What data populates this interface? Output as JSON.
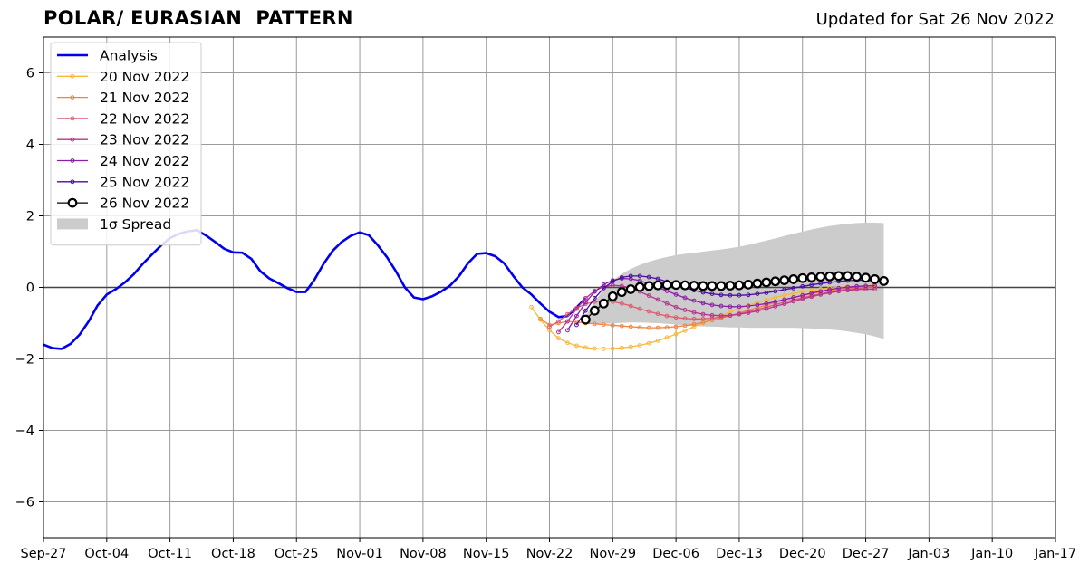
{
  "chart_data": {
    "type": "line",
    "title": "POLAR/ EURASIAN  PATTERN",
    "subtitle": "Updated for Sat 26 Nov 2022",
    "ylim": [
      -7,
      7
    ],
    "yticks": [
      -6,
      -4,
      -2,
      0,
      2,
      4,
      6
    ],
    "ytick_labels": [
      "−6",
      "−4",
      "−2",
      "0",
      "2",
      "4",
      "6"
    ],
    "xlim": [
      "2022-09-27",
      "2023-01-17"
    ],
    "xticks": [
      "2022-09-27",
      "2022-10-04",
      "2022-10-11",
      "2022-10-18",
      "2022-10-25",
      "2022-11-01",
      "2022-11-08",
      "2022-11-15",
      "2022-11-22",
      "2022-11-29",
      "2022-12-06",
      "2022-12-13",
      "2022-12-20",
      "2022-12-27",
      "2023-01-03",
      "2023-01-10",
      "2023-01-17"
    ],
    "xtick_labels": [
      "Sep-27",
      "Oct-04",
      "Oct-11",
      "Oct-18",
      "Oct-25",
      "Nov-01",
      "Nov-08",
      "Nov-15",
      "Nov-22",
      "Nov-29",
      "Dec-06",
      "Dec-13",
      "Dec-20",
      "Dec-27",
      "Jan-03",
      "Jan-10",
      "Jan-17"
    ],
    "grid": true,
    "legend_position": "top-left",
    "series": [
      {
        "name": "Analysis",
        "color": "#0000ee",
        "style": "analysis",
        "start": "2022-09-27",
        "values": [
          -1.6,
          -1.7,
          -1.72,
          -1.58,
          -1.32,
          -0.95,
          -0.5,
          -0.2,
          -0.05,
          0.14,
          0.37,
          0.66,
          0.92,
          1.17,
          1.38,
          1.5,
          1.57,
          1.6,
          1.45,
          1.27,
          1.08,
          0.98,
          0.97,
          0.8,
          0.45,
          0.25,
          0.12,
          -0.02,
          -0.13,
          -0.13,
          0.22,
          0.66,
          1.02,
          1.27,
          1.44,
          1.54,
          1.46,
          1.18,
          0.85,
          0.45,
          0.0,
          -0.28,
          -0.33,
          -0.25,
          -0.12,
          0.05,
          0.32,
          0.68,
          0.94,
          0.96,
          0.87,
          0.67,
          0.32,
          0.0,
          -0.2,
          -0.45,
          -0.68,
          -0.83,
          -0.8,
          -0.56,
          -0.3
        ]
      },
      {
        "name": "20 Nov 2022",
        "color": "#fbb735",
        "style": "forecast",
        "start": "2022-11-20",
        "values": [
          -0.55,
          -0.9,
          -1.2,
          -1.42,
          -1.55,
          -1.63,
          -1.68,
          -1.71,
          -1.72,
          -1.71,
          -1.69,
          -1.66,
          -1.62,
          -1.56,
          -1.49,
          -1.4,
          -1.31,
          -1.21,
          -1.1,
          -0.99,
          -0.88,
          -0.78,
          -0.68,
          -0.59,
          -0.5,
          -0.42,
          -0.35,
          -0.28,
          -0.22,
          -0.17,
          -0.12,
          -0.08,
          -0.05,
          -0.02,
          0.0,
          0.02,
          0.04,
          0.05,
          0.06
        ]
      },
      {
        "name": "21 Nov 2022",
        "color": "#f08442",
        "style": "forecast",
        "start": "2022-11-21",
        "values": [
          -0.88,
          -1.05,
          -1.0,
          -0.95,
          -0.97,
          -1.0,
          -1.02,
          -1.04,
          -1.06,
          -1.08,
          -1.1,
          -1.12,
          -1.13,
          -1.13,
          -1.12,
          -1.1,
          -1.07,
          -1.03,
          -0.98,
          -0.92,
          -0.86,
          -0.79,
          -0.72,
          -0.64,
          -0.57,
          -0.49,
          -0.42,
          -0.35,
          -0.29,
          -0.23,
          -0.18,
          -0.13,
          -0.09,
          -0.06,
          -0.03,
          -0.01,
          0.01,
          0.02
        ]
      },
      {
        "name": "22 Nov 2022",
        "color": "#dd5a6e",
        "style": "forecast",
        "start": "2022-11-22",
        "values": [
          -1.1,
          -0.95,
          -0.75,
          -0.58,
          -0.46,
          -0.4,
          -0.38,
          -0.4,
          -0.45,
          -0.52,
          -0.6,
          -0.67,
          -0.74,
          -0.8,
          -0.84,
          -0.87,
          -0.88,
          -0.88,
          -0.86,
          -0.83,
          -0.79,
          -0.74,
          -0.68,
          -0.62,
          -0.55,
          -0.48,
          -0.41,
          -0.35,
          -0.29,
          -0.23,
          -0.18,
          -0.13,
          -0.09,
          -0.06,
          -0.03,
          -0.01,
          0.0
        ]
      },
      {
        "name": "23 Nov 2022",
        "color": "#b8338f",
        "style": "forecast",
        "start": "2022-11-23",
        "values": [
          -1.25,
          -0.95,
          -0.6,
          -0.3,
          -0.1,
          0.02,
          0.06,
          0.04,
          -0.02,
          -0.12,
          -0.23,
          -0.34,
          -0.45,
          -0.55,
          -0.63,
          -0.7,
          -0.75,
          -0.78,
          -0.79,
          -0.78,
          -0.75,
          -0.71,
          -0.66,
          -0.6,
          -0.53,
          -0.46,
          -0.39,
          -0.32,
          -0.26,
          -0.2,
          -0.15,
          -0.11,
          -0.08,
          -0.06,
          -0.05,
          -0.05
        ]
      },
      {
        "name": "24 Nov 2022",
        "color": "#8a1fa8",
        "style": "forecast",
        "start": "2022-11-24",
        "values": [
          -1.2,
          -0.8,
          -0.42,
          -0.12,
          0.08,
          0.2,
          0.25,
          0.24,
          0.19,
          0.1,
          0.0,
          -0.1,
          -0.2,
          -0.29,
          -0.37,
          -0.44,
          -0.49,
          -0.52,
          -0.54,
          -0.54,
          -0.52,
          -0.49,
          -0.45,
          -0.4,
          -0.34,
          -0.28,
          -0.22,
          -0.16,
          -0.11,
          -0.06,
          -0.02,
          0.01,
          0.03,
          0.04,
          0.05
        ]
      },
      {
        "name": "25 Nov 2022",
        "color": "#4b0c9c",
        "style": "forecast",
        "start": "2022-11-25",
        "values": [
          -1.05,
          -0.65,
          -0.3,
          -0.02,
          0.17,
          0.28,
          0.32,
          0.32,
          0.29,
          0.24,
          0.16,
          0.08,
          -0.01,
          -0.08,
          -0.14,
          -0.18,
          -0.21,
          -0.22,
          -0.22,
          -0.21,
          -0.18,
          -0.15,
          -0.11,
          -0.06,
          -0.02,
          0.03,
          0.07,
          0.11,
          0.14,
          0.17,
          0.19,
          0.2,
          0.2,
          0.19
        ]
      },
      {
        "name": "26 Nov 2022",
        "color": "#000000",
        "style": "latest",
        "start": "2022-11-26",
        "values": [
          -0.9,
          -0.65,
          -0.45,
          -0.25,
          -0.13,
          -0.05,
          0.01,
          0.04,
          0.06,
          0.07,
          0.07,
          0.06,
          0.05,
          0.04,
          0.04,
          0.04,
          0.05,
          0.06,
          0.08,
          0.11,
          0.14,
          0.17,
          0.2,
          0.23,
          0.26,
          0.28,
          0.3,
          0.31,
          0.32,
          0.32,
          0.3,
          0.27,
          0.23,
          0.18
        ]
      }
    ],
    "spread": {
      "name": "1σ Spread",
      "color": "#cccccc",
      "start": "2022-11-26",
      "upper": [
        -0.8,
        -0.4,
        -0.05,
        0.2,
        0.38,
        0.52,
        0.63,
        0.72,
        0.79,
        0.85,
        0.9,
        0.94,
        0.97,
        1.0,
        1.03,
        1.06,
        1.1,
        1.14,
        1.19,
        1.25,
        1.31,
        1.37,
        1.44,
        1.5,
        1.56,
        1.62,
        1.67,
        1.72,
        1.75,
        1.78,
        1.8,
        1.81,
        1.81,
        1.8
      ],
      "lower": [
        -1.0,
        -1.02,
        -1.02,
        -1.01,
        -0.99,
        -0.98,
        -0.98,
        -0.99,
        -1.0,
        -1.02,
        -1.04,
        -1.06,
        -1.08,
        -1.09,
        -1.1,
        -1.11,
        -1.12,
        -1.12,
        -1.13,
        -1.13,
        -1.13,
        -1.13,
        -1.13,
        -1.13,
        -1.14,
        -1.15,
        -1.16,
        -1.18,
        -1.2,
        -1.23,
        -1.27,
        -1.31,
        -1.37,
        -1.44
      ]
    }
  }
}
